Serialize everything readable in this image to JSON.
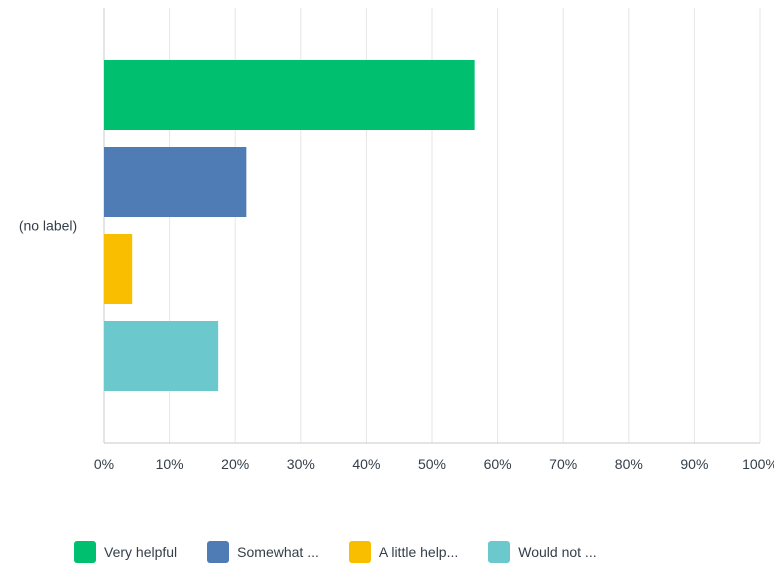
{
  "chart_data": {
    "type": "bar",
    "orientation": "horizontal",
    "categories": [
      "(no label)"
    ],
    "series": [
      {
        "name": "Very helpful",
        "color": "#00bf6f",
        "values": [
          56.5
        ]
      },
      {
        "name": "Somewhat ...",
        "color": "#507cb6",
        "values": [
          21.7
        ]
      },
      {
        "name": "A little help...",
        "color": "#f9be00",
        "values": [
          4.3
        ]
      },
      {
        "name": "Would not ...",
        "color": "#6bc8cd",
        "values": [
          17.4
        ]
      }
    ],
    "xlim": [
      0,
      100
    ],
    "x_ticks": [
      "0%",
      "10%",
      "20%",
      "30%",
      "40%",
      "50%",
      "60%",
      "70%",
      "80%",
      "90%",
      "100%"
    ],
    "grid": true,
    "legend_position": "bottom"
  },
  "colors": {
    "grid": "#e6e6e6",
    "axis": "#c9c9c9",
    "text": "#333e48"
  }
}
